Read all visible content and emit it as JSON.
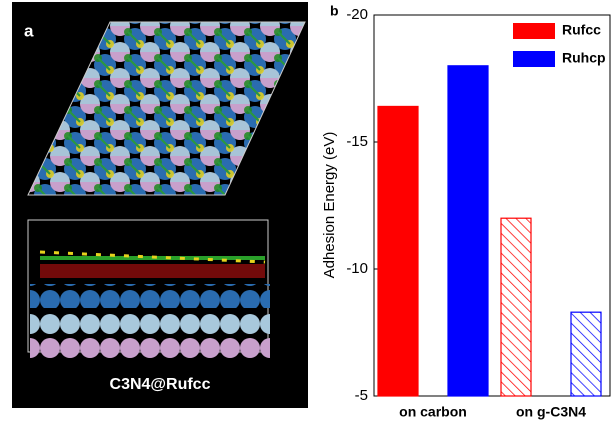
{
  "panel_a": {
    "label": "a",
    "caption": "C3N4@Rufcc"
  },
  "chart_data": {
    "type": "bar",
    "panel_label": "b",
    "y_label": "Adhesion Energy (eV)",
    "categories": [
      "on carbon",
      "on g-C3N4"
    ],
    "category_fill": [
      "solid",
      "hatch"
    ],
    "series": [
      {
        "name": "Rufcc",
        "color": "#ff0000",
        "values": [
          -16.4,
          -12.0
        ]
      },
      {
        "name": "Ruhcp",
        "color": "#0000ff",
        "values": [
          -18.0,
          -8.3
        ]
      }
    ],
    "ylim": [
      -5,
      -20
    ],
    "yticks": [
      -20,
      -15,
      -10,
      -5
    ],
    "grid": false,
    "legend": "top-right"
  }
}
